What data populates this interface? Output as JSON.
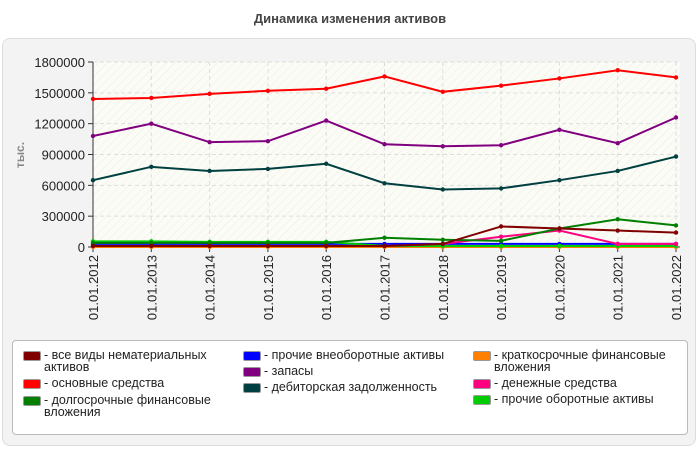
{
  "chart_data": {
    "type": "line",
    "title": "Динамика изменения активов",
    "ylabel": "тыс.",
    "xlabel": "",
    "ylim": [
      0,
      1800000
    ],
    "yticks": [
      0,
      300000,
      600000,
      900000,
      1200000,
      1500000,
      1800000
    ],
    "grid": true,
    "legend_placement": "bottom",
    "categories": [
      "01.01.2012",
      "01.01.2013",
      "01.01.2014",
      "01.01.2015",
      "01.01.2016",
      "01.01.2017",
      "01.01.2018",
      "01.01.2019",
      "01.01.2020",
      "01.01.2021",
      "01.01.2022"
    ],
    "series": [
      {
        "name": "все виды нематериальных активов",
        "color": "#800000",
        "values": [
          10000,
          10000,
          10000,
          10000,
          10000,
          10000,
          30000,
          200000,
          180000,
          160000,
          140000
        ]
      },
      {
        "name": "основные средства",
        "color": "#ff0000",
        "values": [
          1440000,
          1450000,
          1490000,
          1520000,
          1540000,
          1660000,
          1510000,
          1570000,
          1640000,
          1720000,
          1650000
        ]
      },
      {
        "name": "долгосрочные финансовые вложения",
        "color": "#008000",
        "values": [
          40000,
          40000,
          40000,
          40000,
          40000,
          90000,
          70000,
          60000,
          180000,
          270000,
          210000
        ]
      },
      {
        "name": "прочие внеоборотные активы",
        "color": "#0000ff",
        "values": [
          30000,
          30000,
          30000,
          30000,
          30000,
          30000,
          30000,
          30000,
          30000,
          30000,
          30000
        ]
      },
      {
        "name": "запасы",
        "color": "#800080",
        "values": [
          1080000,
          1200000,
          1020000,
          1030000,
          1230000,
          1000000,
          980000,
          990000,
          1140000,
          1010000,
          1260000
        ]
      },
      {
        "name": "дебиторская задолженность",
        "color": "#004040",
        "values": [
          650000,
          780000,
          740000,
          760000,
          810000,
          620000,
          560000,
          570000,
          650000,
          740000,
          880000
        ]
      },
      {
        "name": "краткосрочные финансовые вложения",
        "color": "#ff8000",
        "values": [
          0,
          0,
          0,
          0,
          0,
          0,
          0,
          0,
          0,
          0,
          0
        ]
      },
      {
        "name": "денежные средства",
        "color": "#ff0080",
        "values": [
          10000,
          10000,
          10000,
          10000,
          10000,
          10000,
          30000,
          100000,
          160000,
          30000,
          30000
        ]
      },
      {
        "name": "прочие оборотные активы",
        "color": "#00cc00",
        "values": [
          55000,
          55000,
          50000,
          50000,
          50000,
          10000,
          10000,
          10000,
          10000,
          10000,
          10000
        ]
      }
    ]
  }
}
